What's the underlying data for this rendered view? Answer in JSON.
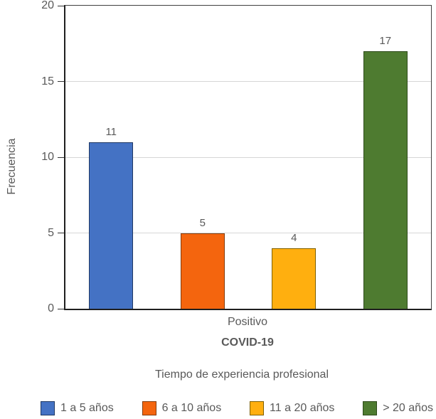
{
  "chart_data": {
    "type": "bar",
    "title": "",
    "ylabel": "Frecuencia",
    "group_label": "Positivo",
    "xlabel": "COVID-19",
    "legend_title": "Tiempo de experiencia profesional",
    "legend_position": "bottom",
    "categories": [
      "1 a 5 años",
      "6 a 10 años",
      "11 a 20 años",
      "> 20 años"
    ],
    "values": [
      11,
      5,
      4,
      17
    ],
    "bar_colors": [
      "#4472C4",
      "#F4650E",
      "#FFAF0F",
      "#4E7B30"
    ],
    "bar_border_colors": [
      "#1F3864",
      "#843C0C",
      "#7F6000",
      "#2E4B1A"
    ],
    "ylim": [
      0,
      20
    ],
    "yticks": [
      0,
      5,
      10,
      15,
      20
    ],
    "grid": true,
    "gridline_color": "#D6D6D6",
    "text_color": "#595959"
  }
}
